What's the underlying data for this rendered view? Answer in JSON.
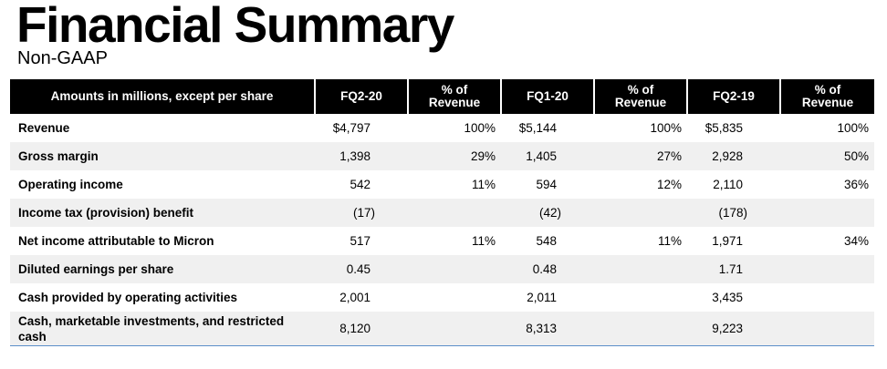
{
  "title": "Financial Summary",
  "subtitle": "Non-GAAP",
  "table": {
    "headers": [
      "Amounts in millions, except per share",
      "FQ2-20",
      "% of Revenue",
      "FQ1-20",
      "% of Revenue",
      "FQ2-19",
      "% of Revenue"
    ],
    "rows": [
      {
        "label": "Revenue",
        "cells": [
          "$4,797",
          "100%",
          "$5,144",
          "100%",
          "$5,835",
          "100%"
        ]
      },
      {
        "label": "Gross margin",
        "cells": [
          "1,398",
          "29%",
          "1,405",
          "27%",
          "2,928",
          "50%"
        ]
      },
      {
        "label": "Operating income",
        "cells": [
          "542",
          "11%",
          "594",
          "12%",
          "2,110",
          "36%"
        ]
      },
      {
        "label": "Income tax (provision) benefit",
        "cells": [
          "(17)",
          "",
          "(42)",
          "",
          "(178)",
          ""
        ]
      },
      {
        "label": "Net income attributable to Micron",
        "cells": [
          "517",
          "11%",
          "548",
          "11%",
          "1,971",
          "34%"
        ]
      },
      {
        "label": "Diluted earnings per share",
        "cells": [
          "0.45",
          "",
          "0.48",
          "",
          "1.71",
          ""
        ]
      },
      {
        "label": "Cash provided by operating activities",
        "cells": [
          "2,001",
          "",
          "2,011",
          "",
          "3,435",
          ""
        ]
      },
      {
        "label": "Cash, marketable investments, and restricted cash",
        "cells": [
          "8,120",
          "",
          "8,313",
          "",
          "9,223",
          ""
        ]
      }
    ]
  }
}
